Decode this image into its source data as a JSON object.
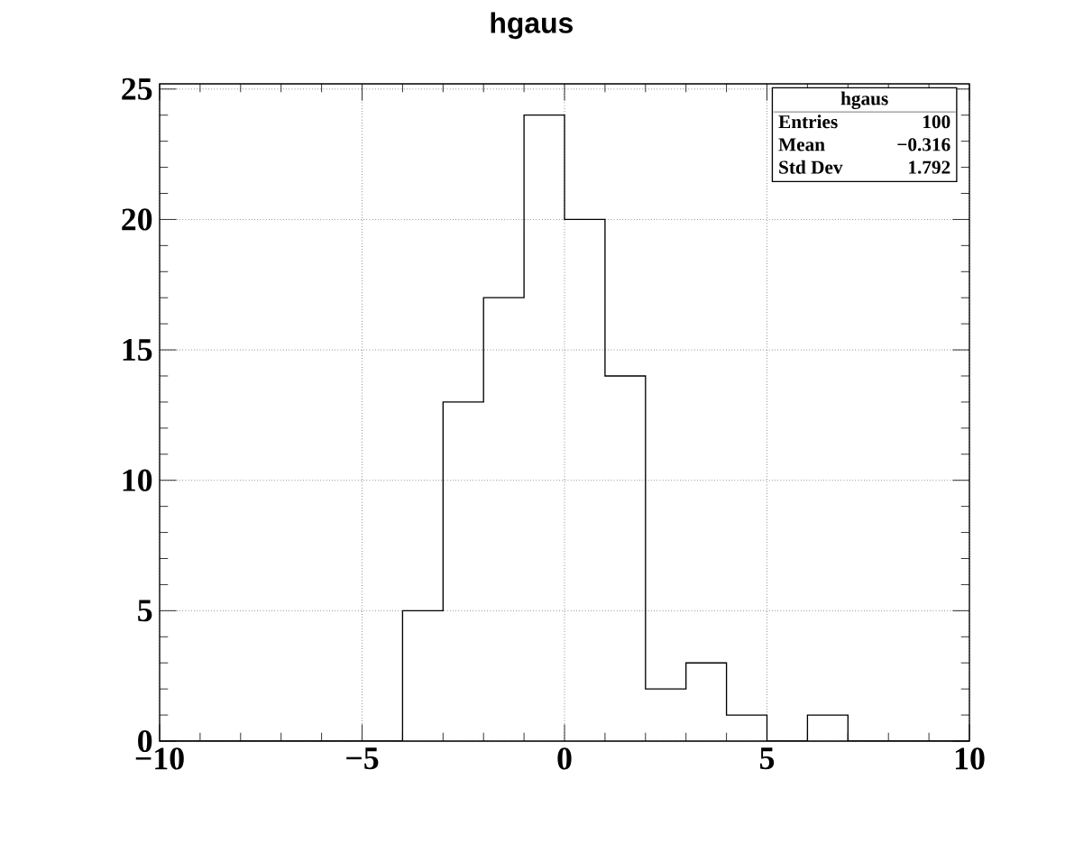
{
  "chart_data": {
    "type": "histogram",
    "title": "hgaus",
    "bins": [
      -10,
      -9,
      -8,
      -7,
      -6,
      -5,
      -4,
      -3,
      -2,
      -1,
      0,
      1,
      2,
      3,
      4,
      5,
      6,
      7,
      8,
      9,
      10
    ],
    "values": [
      0,
      0,
      0,
      0,
      0,
      0,
      5,
      13,
      17,
      24,
      20,
      14,
      2,
      3,
      1,
      0,
      1,
      0,
      0,
      0
    ],
    "color": "#000000",
    "xlim": [
      -10,
      10
    ],
    "ylim": [
      0,
      25.2
    ],
    "xticks": [
      {
        "value": -10,
        "label": "−10"
      },
      {
        "value": -5,
        "label": "−5"
      },
      0,
      5,
      10
    ],
    "yticks": [
      0,
      5,
      10,
      15,
      20,
      25
    ],
    "grid": true,
    "annotations": [
      "hgaus",
      "Entries",
      "100",
      "Mean",
      "−0.316",
      "Std Dev",
      "1.792"
    ]
  }
}
